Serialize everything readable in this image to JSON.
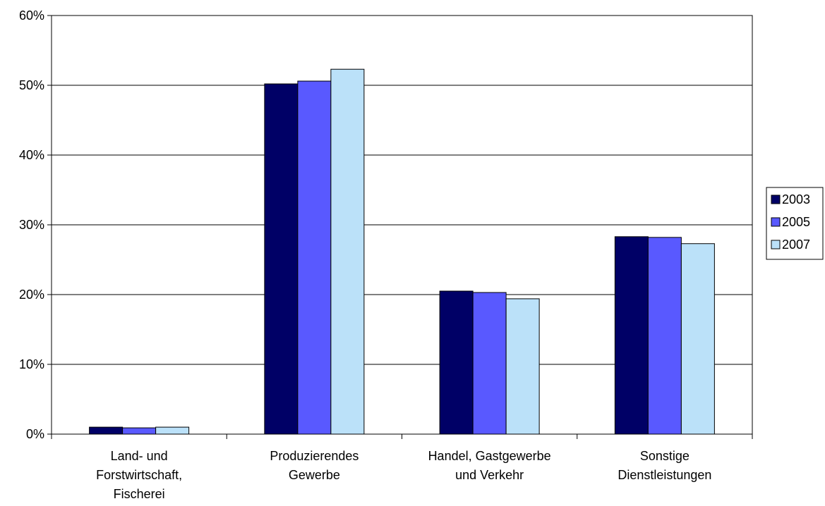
{
  "chart_data": {
    "type": "bar",
    "categories": [
      [
        "Land- und",
        "Forstwirtschaft,",
        "Fischerei"
      ],
      [
        "Produzierendes",
        "Gewerbe"
      ],
      [
        "Handel, Gastgewerbe",
        "und Verkehr"
      ],
      [
        "Sonstige",
        "Dienstleistungen"
      ]
    ],
    "series": [
      {
        "name": "2003",
        "color": "#000066",
        "values": [
          1.0,
          50.2,
          20.5,
          28.3
        ]
      },
      {
        "name": "2005",
        "color": "#5959FF",
        "values": [
          0.9,
          50.6,
          20.3,
          28.2
        ]
      },
      {
        "name": "2007",
        "color": "#BBE1F9",
        "values": [
          1.0,
          52.3,
          19.4,
          27.3
        ]
      }
    ],
    "yaxis": {
      "min": 0,
      "max": 60,
      "step": 10,
      "tick_suffix": "%"
    },
    "grid": true,
    "legend": "right",
    "title": "",
    "xlabel": "",
    "ylabel": ""
  }
}
